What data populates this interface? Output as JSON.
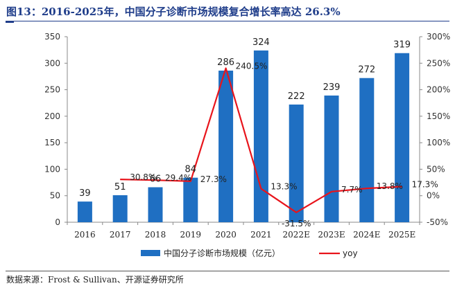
{
  "title": "图13：2016-2025年，中国分子诊断市场规模复合增长率高达 26.3%",
  "source": "数据来源：Frost & Sullivan、开源证券研究所",
  "colors": {
    "bar": "#1f6fc2",
    "line": "#e8141b",
    "title": "#1f3d8a"
  },
  "chart_data": {
    "type": "bar",
    "categories": [
      "2016",
      "2017",
      "2018",
      "2019",
      "2020",
      "2021",
      "2022E",
      "2023E",
      "2024E",
      "2025E"
    ],
    "series": [
      {
        "name": "中国分子诊断市场规模（亿元）",
        "type": "bar",
        "axis": "left",
        "values": [
          39,
          51,
          66,
          84,
          286,
          324,
          222,
          239,
          272,
          319
        ],
        "labels": [
          "39",
          "51",
          "66",
          "84",
          "286",
          "324",
          "222",
          "239",
          "272",
          "319"
        ]
      },
      {
        "name": "yoy",
        "type": "line",
        "axis": "right",
        "values": [
          null,
          30.8,
          29.4,
          27.3,
          240.5,
          13.3,
          -31.5,
          7.7,
          13.8,
          17.3
        ],
        "labels": [
          "",
          "30.8%",
          "29.4%",
          "27.3%",
          "240.5%",
          "13.3%",
          "-31.5%",
          "7.7%",
          "13.8%",
          "17.3%"
        ]
      }
    ],
    "y_left": {
      "min": 0,
      "max": 350,
      "step": 50,
      "ticks": [
        "0",
        "50",
        "100",
        "150",
        "200",
        "250",
        "300",
        "350"
      ]
    },
    "y_right": {
      "min": -50,
      "max": 300,
      "step": 50,
      "ticks": [
        "-50%",
        "0%",
        "50%",
        "100%",
        "150%",
        "200%",
        "250%",
        "300%"
      ]
    },
    "legend": [
      "中国分子诊断市场规模（亿元）",
      "yoy"
    ],
    "legend_position": "bottom",
    "grid": false
  }
}
